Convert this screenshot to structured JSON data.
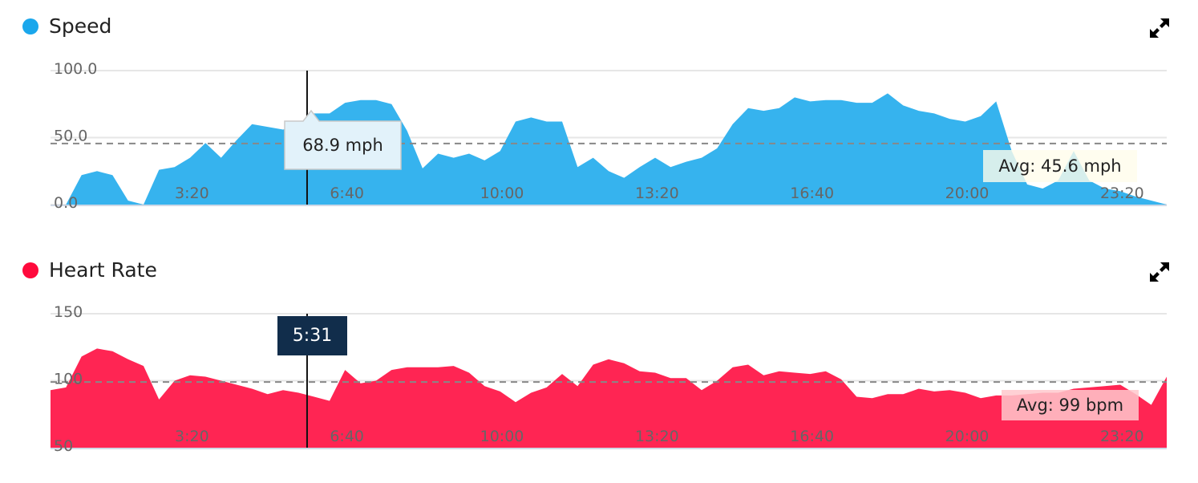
{
  "colors": {
    "speed": "#36b3ee",
    "speed_dot": "#1aa7ec",
    "heart_rate": "#ff2553",
    "heart_rate_dot": "#ff0a3c",
    "time_label_bg": "#112d4b"
  },
  "cursor": {
    "time": "5:31",
    "speed_readout": "68.9 mph"
  },
  "chart_data": [
    {
      "type": "area",
      "title": "Speed",
      "unit": "mph",
      "ylim": [
        0,
        100
      ],
      "yticks": [
        "0.0",
        "50.0",
        "100.0"
      ],
      "xticks": [
        "3:20",
        "6:40",
        "10:00",
        "13:20",
        "16:40",
        "20:00",
        "23:20"
      ],
      "grid": true,
      "average": 45.6,
      "average_label": "Avg: 45.6 mph",
      "x": [
        "0:00",
        "0:20",
        "0:40",
        "1:00",
        "1:20",
        "1:40",
        "2:00",
        "2:20",
        "2:40",
        "3:00",
        "3:20",
        "3:40",
        "4:00",
        "4:20",
        "4:40",
        "5:00",
        "5:20",
        "5:40",
        "6:00",
        "6:20",
        "6:40",
        "7:00",
        "7:20",
        "7:40",
        "8:00",
        "8:20",
        "8:40",
        "9:00",
        "9:20",
        "9:40",
        "10:00",
        "10:20",
        "10:40",
        "11:00",
        "11:20",
        "11:40",
        "12:00",
        "12:20",
        "12:40",
        "13:00",
        "13:20",
        "13:40",
        "14:00",
        "14:20",
        "14:40",
        "15:00",
        "15:20",
        "15:40",
        "16:00",
        "16:20",
        "16:40",
        "17:00",
        "17:20",
        "17:40",
        "18:00",
        "18:20",
        "18:40",
        "19:00",
        "19:20",
        "19:40",
        "20:00",
        "20:20",
        "20:40",
        "21:00",
        "21:20",
        "21:40",
        "22:00",
        "22:20",
        "22:40",
        "23:00",
        "23:20",
        "23:40",
        "24:00"
      ],
      "values": [
        0,
        0,
        22,
        25,
        22,
        3,
        0,
        26,
        28,
        35,
        46,
        35,
        48,
        60,
        58,
        56,
        60,
        68,
        68,
        76,
        78,
        78,
        75,
        55,
        27,
        38,
        35,
        38,
        33,
        40,
        62,
        65,
        62,
        62,
        28,
        35,
        25,
        20,
        28,
        35,
        28,
        32,
        35,
        42,
        60,
        72,
        70,
        72,
        80,
        77,
        78,
        78,
        76,
        76,
        83,
        74,
        70,
        68,
        64,
        62,
        66,
        77,
        40,
        15,
        12,
        18,
        40,
        18,
        12,
        10,
        6,
        3,
        0
      ]
    },
    {
      "type": "area",
      "title": "Heart Rate",
      "unit": "bpm",
      "ylim": [
        50,
        150
      ],
      "yticks": [
        "50",
        "100",
        "150"
      ],
      "xticks": [
        "3:20",
        "6:40",
        "10:00",
        "13:20",
        "16:40",
        "20:00",
        "23:20"
      ],
      "grid": true,
      "average": 99,
      "average_label": "Avg: 99 bpm",
      "x": [
        "0:00",
        "0:20",
        "0:40",
        "1:00",
        "1:20",
        "1:40",
        "2:00",
        "2:20",
        "2:40",
        "3:00",
        "3:20",
        "3:40",
        "4:00",
        "4:20",
        "4:40",
        "5:00",
        "5:20",
        "5:40",
        "6:00",
        "6:20",
        "6:40",
        "7:00",
        "7:20",
        "7:40",
        "8:00",
        "8:20",
        "8:40",
        "9:00",
        "9:20",
        "9:40",
        "10:00",
        "10:20",
        "10:40",
        "11:00",
        "11:20",
        "11:40",
        "12:00",
        "12:20",
        "12:40",
        "13:00",
        "13:20",
        "13:40",
        "14:00",
        "14:20",
        "14:40",
        "15:00",
        "15:20",
        "15:40",
        "16:00",
        "16:20",
        "16:40",
        "17:00",
        "17:20",
        "17:40",
        "18:00",
        "18:20",
        "18:40",
        "19:00",
        "19:20",
        "19:40",
        "20:00",
        "20:20",
        "20:40",
        "21:00",
        "21:20",
        "21:40",
        "22:00",
        "22:20",
        "22:40",
        "23:00",
        "23:20",
        "23:40",
        "24:00"
      ],
      "values": [
        93,
        95,
        118,
        124,
        122,
        116,
        111,
        86,
        100,
        104,
        103,
        100,
        97,
        94,
        90,
        93,
        91,
        88,
        85,
        108,
        98,
        100,
        108,
        110,
        110,
        110,
        111,
        106,
        96,
        92,
        84,
        91,
        95,
        105,
        96,
        112,
        116,
        113,
        107,
        106,
        102,
        102,
        93,
        100,
        110,
        112,
        104,
        107,
        106,
        105,
        107,
        101,
        88,
        87,
        90,
        90,
        94,
        92,
        93,
        91,
        87,
        89,
        89,
        90,
        91,
        91,
        94,
        95,
        96,
        97,
        90,
        82,
        103
      ]
    }
  ]
}
